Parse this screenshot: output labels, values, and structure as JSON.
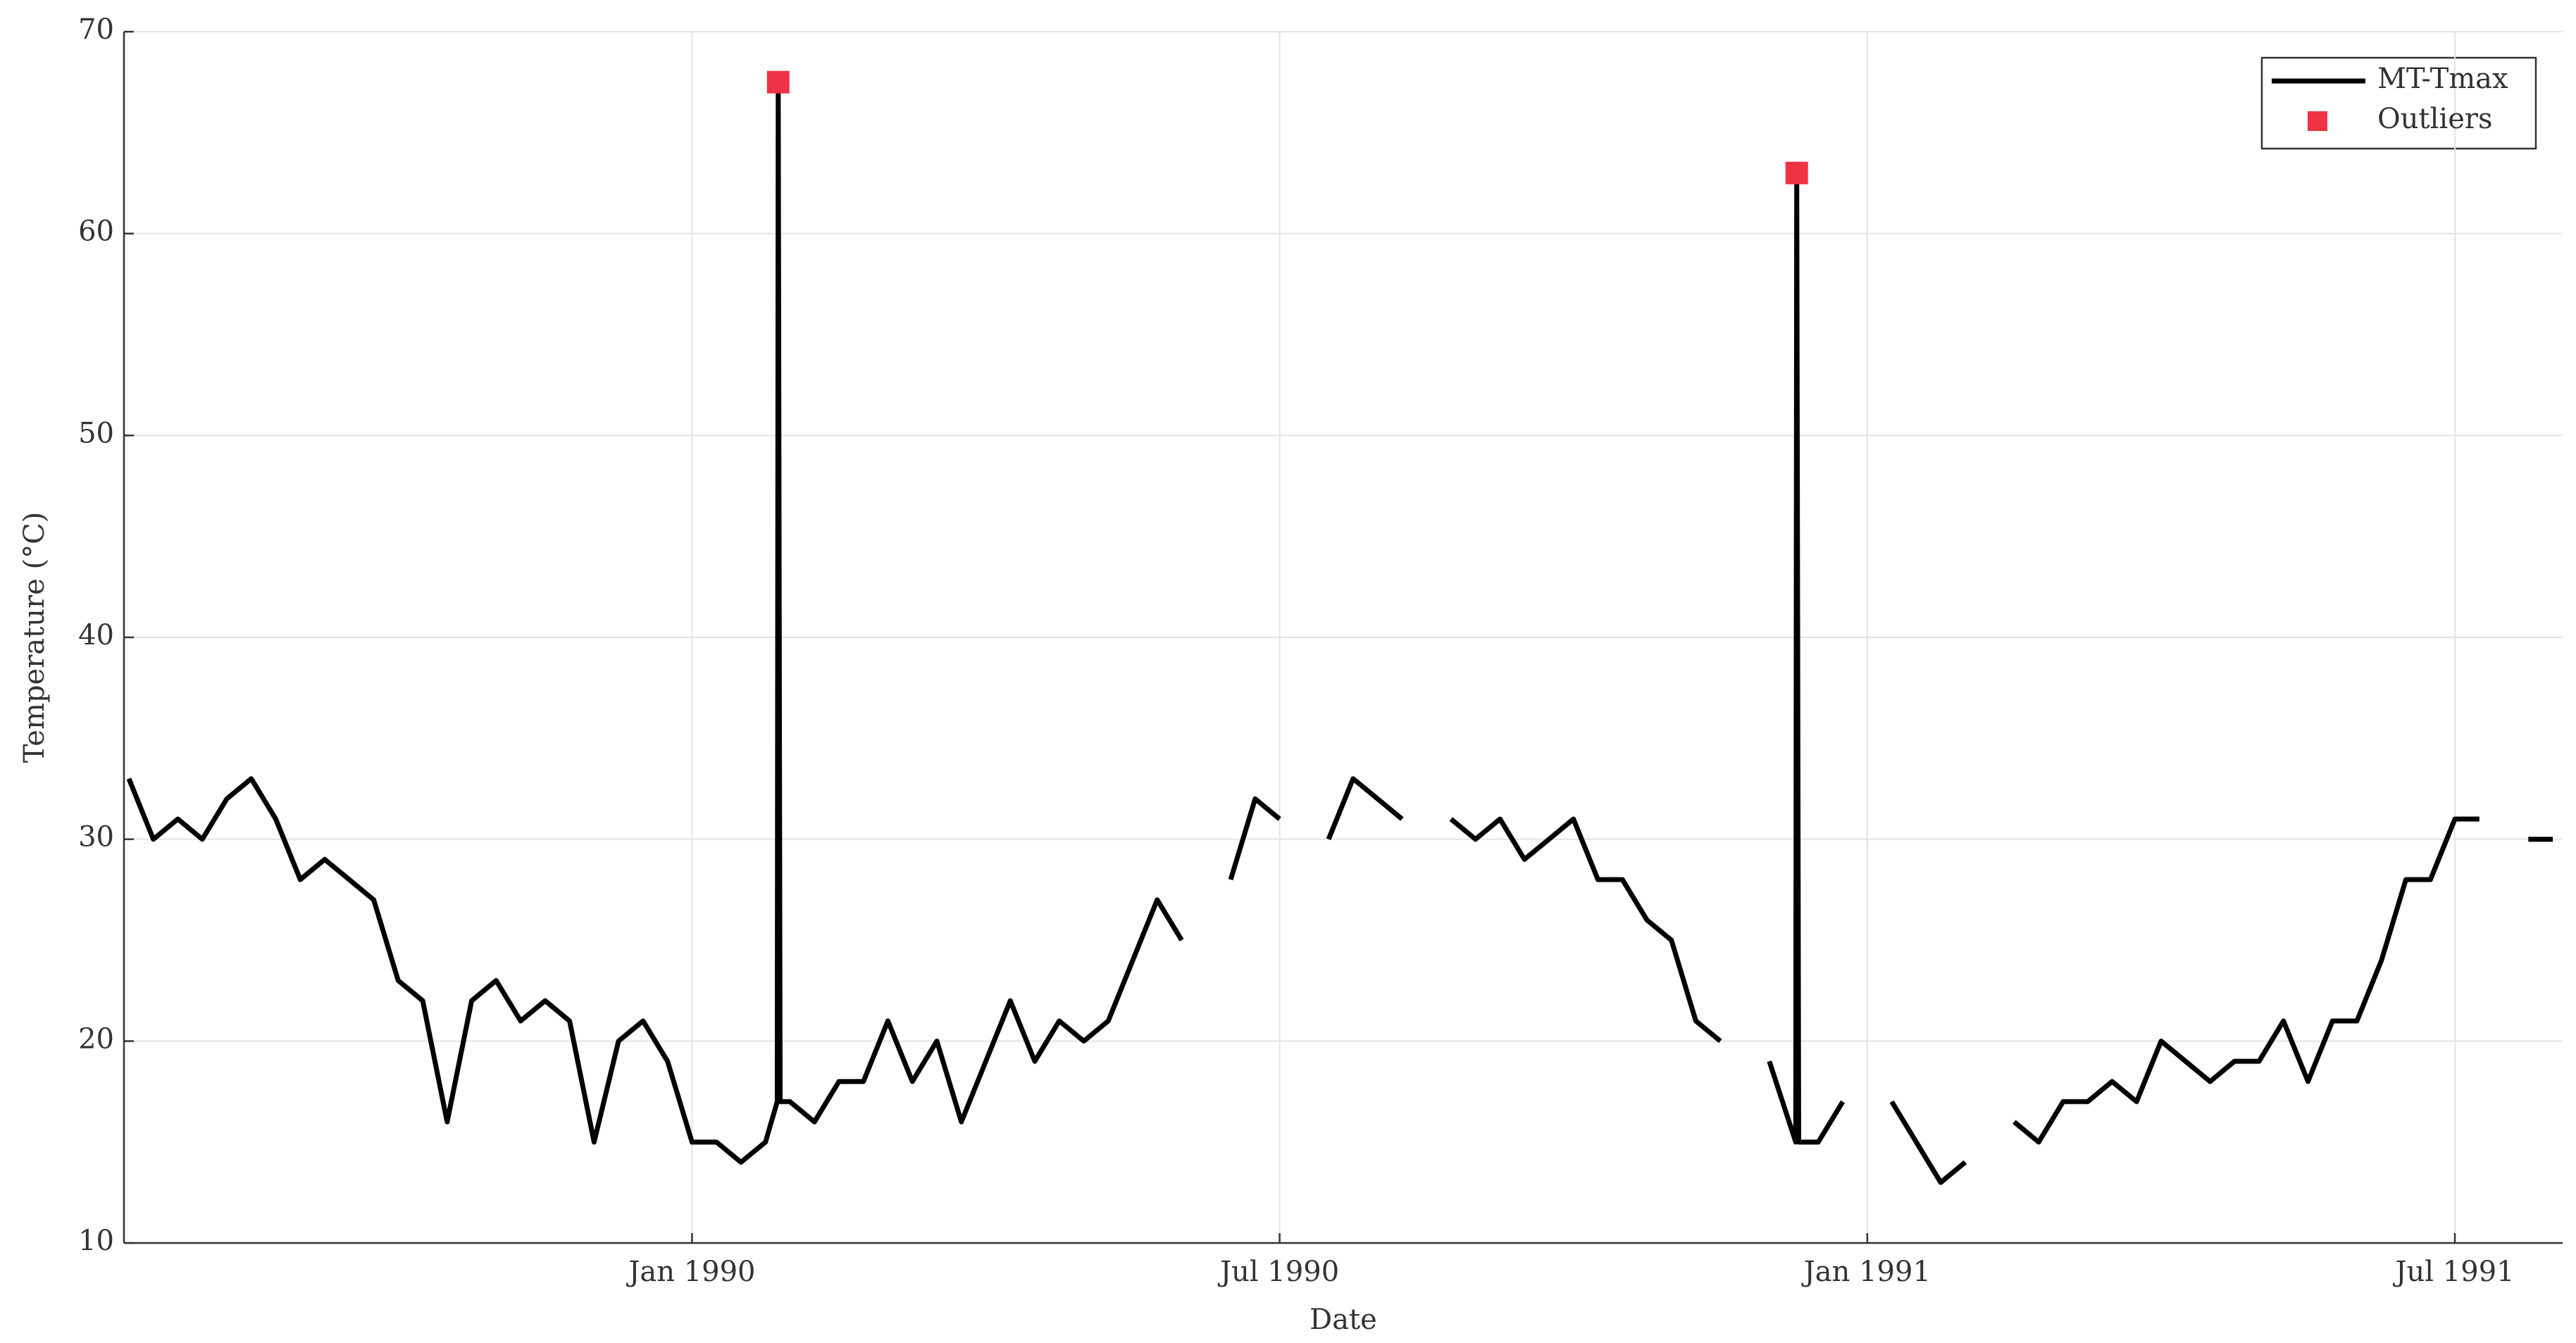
{
  "chart_data": {
    "type": "line",
    "x_label": "Date",
    "y_label": "Temperature (°C)",
    "xlim": [
      -5.8,
      19.1
    ],
    "xticks": [
      {
        "value": 0,
        "label": "Jan 1990"
      },
      {
        "value": 6,
        "label": "Jul 1990"
      },
      {
        "value": 12,
        "label": "Jan 1991"
      },
      {
        "value": 18,
        "label": "Jul 1991"
      }
    ],
    "ylim": [
      10,
      70
    ],
    "yticks": [
      10,
      20,
      30,
      40,
      50,
      60,
      70
    ],
    "grid": true,
    "legend": "upper right",
    "series": [
      {
        "name": "MT-Tmax",
        "color": "#000000",
        "marker": "line",
        "x": [
          -5.75,
          -5.5,
          -5.25,
          -5.0,
          -4.75,
          -4.5,
          -4.25,
          -4.0,
          -3.75,
          -3.5,
          -3.25,
          -3.0,
          -2.75,
          -2.5,
          -2.25,
          -2.0,
          -1.75,
          -1.5,
          -1.25,
          -1.0,
          -0.75,
          -0.5,
          -0.25,
          0,
          0.25,
          0.5,
          0.75,
          0.87,
          0.88,
          0.9,
          1.0,
          1.25,
          1.5,
          1.75,
          2.0,
          2.25,
          2.5,
          2.75,
          3.0,
          3.25,
          3.5,
          3.75,
          4.0,
          4.25,
          4.5,
          4.75,
          5.0,
          5.25,
          5.5,
          5.75,
          6.0,
          6.25,
          6.5,
          6.75,
          7.0,
          7.25,
          7.5,
          7.75,
          8.0,
          8.25,
          8.5,
          8.75,
          9.0,
          9.25,
          9.5,
          9.75,
          10.0,
          10.25,
          10.5,
          10.75,
          11.0,
          11.27,
          11.28,
          11.3,
          11.5,
          11.75,
          12.0,
          12.25,
          12.5,
          12.75,
          13.0,
          13.25,
          13.5,
          13.75,
          14.0,
          14.25,
          14.5,
          14.75,
          15.0,
          15.25,
          15.5,
          15.75,
          16.0,
          16.25,
          16.5,
          16.75,
          17.0,
          17.25,
          17.5,
          17.75,
          18.0,
          18.25,
          18.5,
          18.75,
          19.0
        ],
        "values": [
          33,
          30,
          31,
          30,
          32,
          33,
          31,
          28,
          29,
          28,
          27,
          23,
          22,
          16,
          22,
          23,
          21,
          22,
          21,
          15,
          20,
          21,
          19,
          15,
          15,
          14,
          15,
          17,
          67.5,
          17,
          17,
          16,
          18,
          18,
          21,
          18,
          20,
          16,
          19,
          22,
          19,
          21,
          20,
          21,
          24,
          27,
          25,
          null,
          28,
          32,
          31,
          null,
          30,
          33,
          32,
          31,
          null,
          31,
          30,
          31,
          29,
          30,
          31,
          28,
          28,
          26,
          25,
          21,
          20,
          null,
          19,
          15,
          63,
          15,
          15,
          17,
          null,
          17,
          15,
          13,
          14,
          null,
          16,
          15,
          17,
          17,
          18,
          17,
          20,
          19,
          18,
          19,
          19,
          21,
          18,
          21,
          21,
          24,
          28,
          28,
          31,
          31,
          null,
          30,
          30
        ]
      },
      {
        "name": "Outliers",
        "color": "#ee3344",
        "marker": "square",
        "x": [
          0.88,
          11.28
        ],
        "values": [
          67.5,
          63
        ]
      }
    ]
  }
}
